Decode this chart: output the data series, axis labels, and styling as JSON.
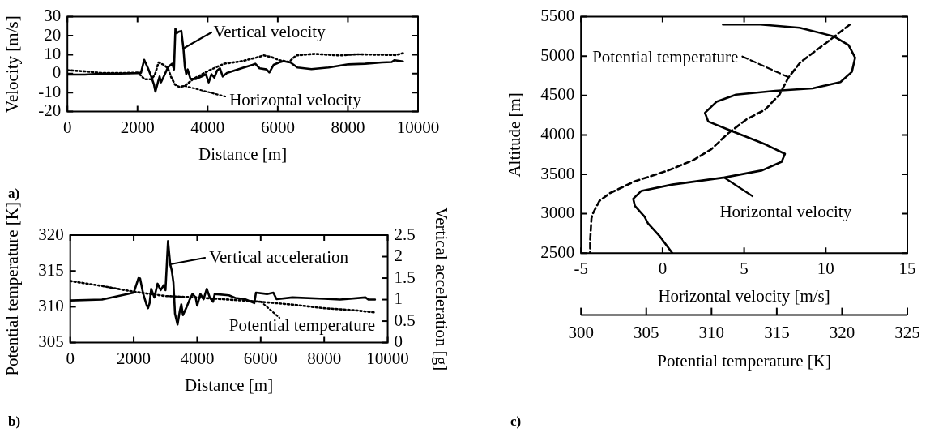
{
  "chart_data": [
    {
      "type": "line",
      "xlabel": "Distance [m]",
      "ylabel": "Velocity [m/s]",
      "xlim": [
        0,
        10000
      ],
      "xticks": [
        0,
        2000,
        4000,
        6000,
        8000,
        10000
      ],
      "ylim": [
        -20,
        30
      ],
      "yticks": [
        -20,
        -10,
        0,
        10,
        20,
        30
      ],
      "marker": "none",
      "legend": "bottom right",
      "annotations": [
        "a)"
      ],
      "series": [
        {
          "name": "Vertical velocity",
          "color": "#000000",
          "line_style": "solid",
          "x": [
            0,
            500,
            1000,
            1500,
            2000,
            2100,
            2190,
            2300,
            2390,
            2470,
            2510,
            2590,
            2630,
            2670,
            2750,
            2870,
            2990,
            3040,
            3080,
            3120,
            3170,
            3250,
            3310,
            3350,
            3390,
            3430,
            3510,
            3670,
            3830,
            3950,
            4030,
            4110,
            4190,
            4270,
            4350,
            4430,
            4550,
            4960,
            5280,
            5360,
            5480,
            5680,
            5760,
            5880,
            6040,
            6160,
            6360,
            6560,
            6960,
            7450,
            8010,
            8490,
            8970,
            9250,
            9330,
            9570
          ],
          "values": [
            -0.5,
            -0.5,
            0,
            0,
            0.3,
            0.5,
            7.3,
            2.8,
            -1.5,
            -5.8,
            -9.5,
            -4,
            -1.5,
            -4.6,
            -1.5,
            3.4,
            5.2,
            2.2,
            23.7,
            21.3,
            22,
            22.5,
            13,
            3.4,
            -0.3,
            2.2,
            -2.8,
            -2.8,
            -1.5,
            -0.3,
            -4.6,
            -0.3,
            -2.1,
            1.6,
            2.8,
            -1.5,
            0.3,
            2.8,
            4.6,
            5.2,
            2.8,
            2.2,
            0.6,
            4.6,
            5.9,
            6.5,
            5.9,
            3.2,
            2.4,
            3.2,
            4.9,
            5.2,
            5.9,
            6.1,
            7.1,
            6.4
          ]
        },
        {
          "name": "Horizontal velocity",
          "color": "#000000",
          "line_style": "dotted",
          "x": [
            0,
            500,
            1000,
            1500,
            2000,
            2100,
            2200,
            2400,
            2500,
            2600,
            2750,
            2870,
            2950,
            3070,
            3190,
            3350,
            3590,
            4030,
            4470,
            4960,
            5360,
            5600,
            5840,
            6040,
            6320,
            6520,
            7040,
            7770,
            8250,
            9370,
            9570
          ],
          "values": [
            1.8,
            1.2,
            0.3,
            0.3,
            0.5,
            -1,
            -3,
            -3,
            -0.3,
            5.9,
            4.6,
            2.8,
            -1.5,
            -5.8,
            -7,
            -6.5,
            -2.8,
            1.6,
            5.2,
            6.5,
            8.3,
            9.6,
            8.6,
            7.1,
            6.1,
            9.6,
            10.4,
            9.6,
            10.2,
            9.8,
            10.8
          ]
        }
      ]
    },
    {
      "type": "line",
      "xlabel": "Distance [m]",
      "ylabel": "Potential temperature [K]",
      "y2label": "Vertical acceleration [g]",
      "xlim": [
        0,
        10000
      ],
      "xticks": [
        0,
        2000,
        4000,
        6000,
        8000,
        10000
      ],
      "ylim": [
        305,
        320
      ],
      "yticks": [
        305,
        310,
        315,
        320
      ],
      "y2lim": [
        0,
        2.5
      ],
      "y2ticks": [
        0,
        0.5,
        1,
        1.5,
        2,
        2.5
      ],
      "marker": "none",
      "legend": "top",
      "annotations": [
        "b)"
      ],
      "series": [
        {
          "name": "Vertical acceleration",
          "color": "#000000",
          "line_style": "solid",
          "axis": "y2",
          "x": [
            0,
            1000,
            2000,
            2150,
            2200,
            2300,
            2400,
            2450,
            2500,
            2550,
            2650,
            2750,
            2850,
            2950,
            3000,
            3080,
            3150,
            3200,
            3250,
            3300,
            3380,
            3450,
            3500,
            3550,
            3650,
            3750,
            3850,
            3950,
            4000,
            4100,
            4200,
            4300,
            4400,
            4500,
            4550,
            5000,
            5200,
            5500,
            5800,
            5850,
            6200,
            6400,
            6500,
            7000,
            8000,
            8500,
            9300,
            9400,
            9600
          ],
          "values": [
            0.98,
            1.0,
            1.16,
            1.5,
            1.49,
            1.13,
            0.89,
            0.8,
            0.92,
            1.25,
            1.05,
            1.37,
            1.22,
            1.34,
            1.22,
            2.36,
            1.82,
            1.67,
            1.4,
            0.67,
            0.42,
            0.73,
            0.89,
            0.64,
            0.8,
            0.98,
            1.13,
            1.05,
            0.86,
            1.13,
            1.01,
            1.25,
            1.04,
            0.95,
            1.13,
            1.1,
            1.04,
            1.01,
            0.92,
            1.16,
            1.13,
            1.16,
            1.01,
            1.05,
            1.02,
            1.0,
            1.05,
            1.0,
            1.0
          ]
        },
        {
          "name": "Potential temperature",
          "color": "#000000",
          "line_style": "dotted",
          "x": [
            0,
            1000,
            2000,
            3000,
            4000,
            5000,
            6000,
            7000,
            8000,
            9000,
            9600
          ],
          "values": [
            313.6,
            312.9,
            312.1,
            311.5,
            311.3,
            311,
            310.7,
            310.3,
            309.8,
            309.5,
            309.2
          ]
        }
      ]
    },
    {
      "type": "line",
      "xlabel": "Horizontal velocity [m/s]",
      "x2label": "Potential temperature [K]",
      "ylabel": "Altitude [m]",
      "xlim": [
        -5,
        15
      ],
      "xticks": [
        -5,
        0,
        5,
        10,
        15
      ],
      "x2lim": [
        300,
        325
      ],
      "x2ticks": [
        300,
        305,
        310,
        315,
        320,
        325
      ],
      "ylim": [
        2500,
        5500
      ],
      "yticks": [
        2500,
        3000,
        3500,
        4000,
        4500,
        5000,
        5500
      ],
      "marker": "none",
      "legend": "top left",
      "annotations": [
        "c)"
      ],
      "series": [
        {
          "name": "Horizontal velocity",
          "color": "#000000",
          "line_style": "solid",
          "x": [
            3.7,
            6.0,
            8.4,
            10.5,
            11.4,
            11.8,
            11.6,
            10.9,
            9.2,
            6.9,
            4.5,
            3.3,
            2.6,
            2.8,
            4.1,
            6.3,
            7.5,
            7.3,
            6.1,
            3.8,
            0.6,
            -1.3,
            -1.8,
            -1.7,
            -1.1,
            -0.9,
            -0.2,
            0.6
          ],
          "values": [
            5400,
            5400,
            5360,
            5250,
            5140,
            4980,
            4800,
            4670,
            4590,
            4560,
            4510,
            4420,
            4280,
            4170,
            4060,
            3880,
            3760,
            3660,
            3550,
            3460,
            3370,
            3290,
            3190,
            3100,
            2960,
            2880,
            2720,
            2500
          ]
        },
        {
          "name": "Potential temperature",
          "color": "#000000",
          "line_style": "dashed",
          "axis": "x2",
          "x": [
            320.6,
            318.8,
            316.8,
            315.9,
            315.2,
            314.1,
            312.7,
            311.2,
            310.0,
            308.6,
            306.7,
            304.1,
            302.2,
            301.4,
            300.9,
            300.8,
            300.7,
            300.7
          ],
          "values": [
            5400,
            5170,
            4920,
            4730,
            4510,
            4320,
            4200,
            4010,
            3820,
            3680,
            3550,
            3410,
            3260,
            3160,
            3000,
            2940,
            2660,
            2500
          ]
        }
      ]
    }
  ]
}
